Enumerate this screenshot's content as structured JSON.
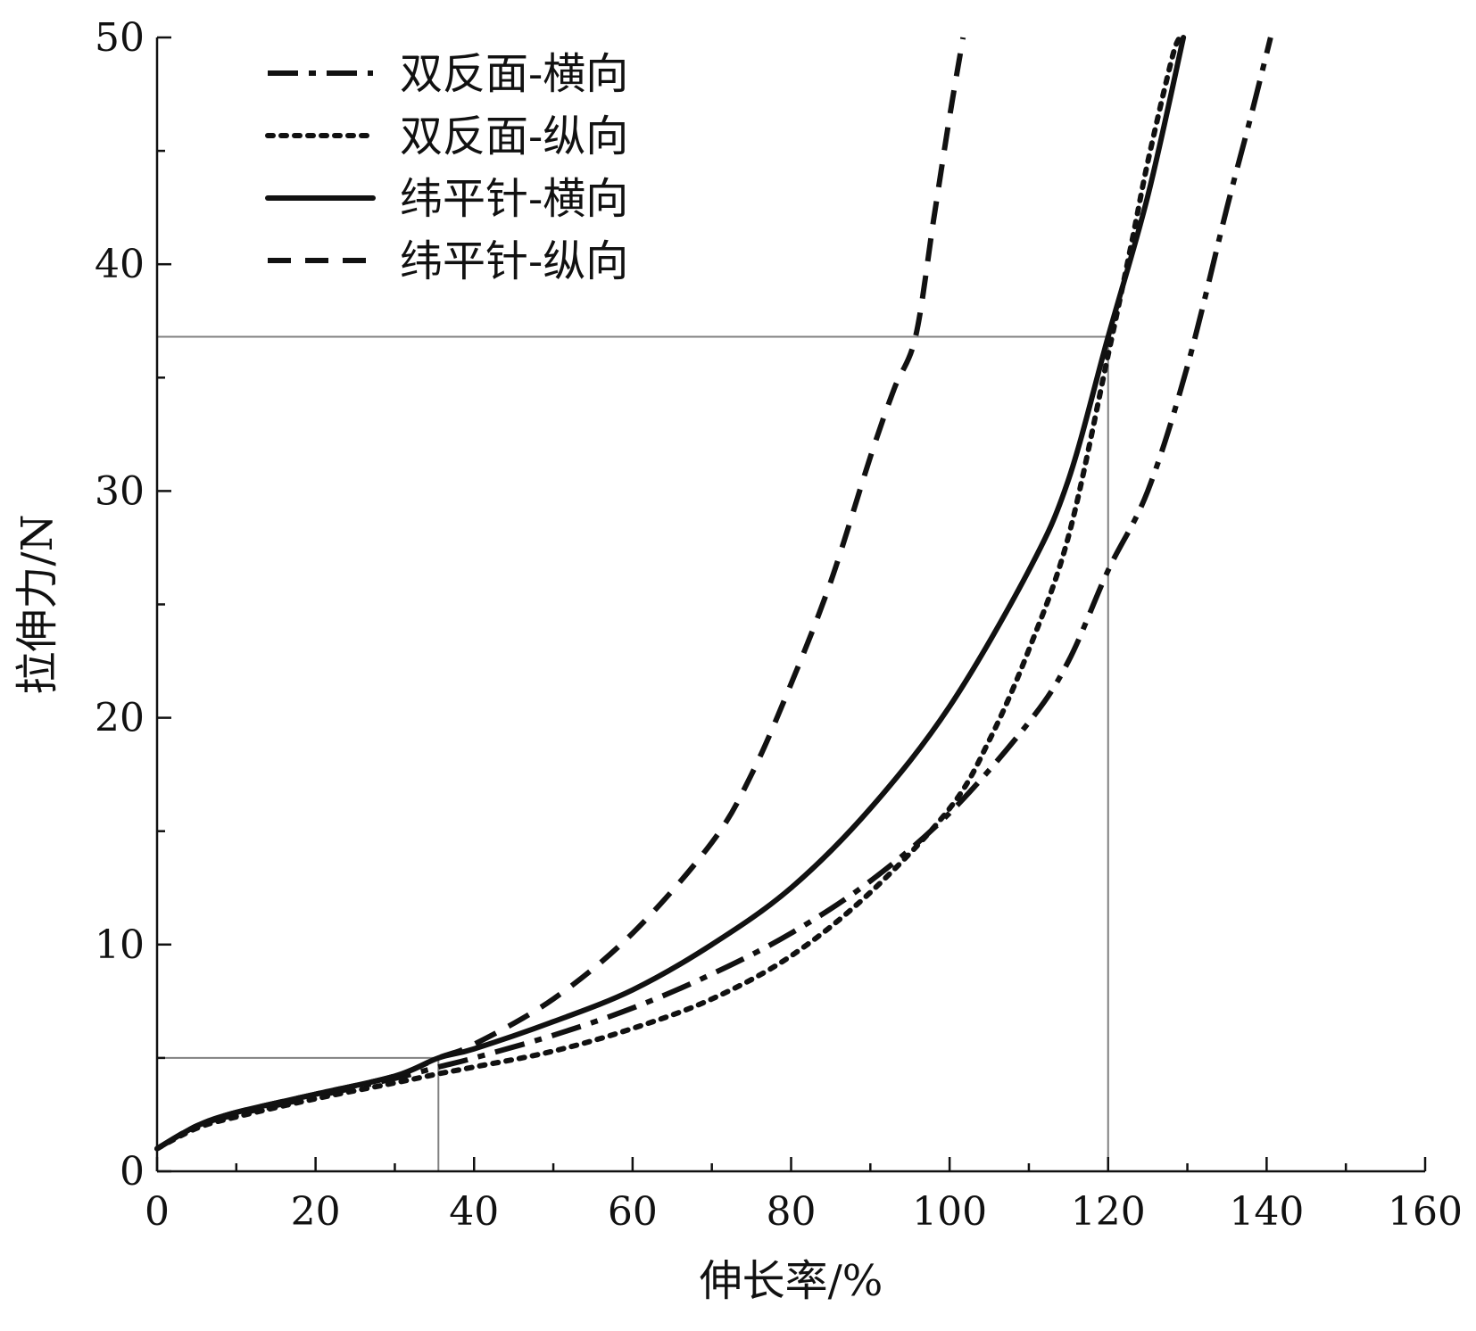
{
  "chart_data": {
    "type": "line",
    "xlabel": "伸长率/%",
    "ylabel": "拉伸力/N",
    "xlim": [
      0,
      160
    ],
    "ylim": [
      0,
      50
    ],
    "xticks": [
      "0",
      "20",
      "40",
      "60",
      "80",
      "100",
      "120",
      "140",
      "160"
    ],
    "yticks": [
      "0",
      "10",
      "20",
      "30",
      "40",
      "50"
    ],
    "grid": false,
    "legend_position": "top-left",
    "series": [
      {
        "name": "双反面-横向",
        "line_style": "dash-dot",
        "color": "#111111",
        "x": [
          0,
          5,
          10,
          20,
          30,
          35.5,
          40,
          50,
          60,
          70,
          80,
          90,
          100,
          110,
          115,
          120,
          125,
          130,
          135,
          138,
          140.5
        ],
        "y": [
          1.0,
          2.0,
          2.5,
          3.3,
          4.1,
          4.6,
          5.0,
          6.0,
          7.2,
          8.7,
          10.5,
          12.8,
          15.8,
          19.8,
          22.5,
          26.5,
          30.0,
          35.5,
          42.5,
          46.5,
          50.0
        ]
      },
      {
        "name": "双反面-纵向",
        "line_style": "dotted",
        "color": "#111111",
        "x": [
          0,
          5,
          10,
          20,
          30,
          35.5,
          40,
          50,
          60,
          70,
          80,
          90,
          100,
          105,
          110,
          115,
          120,
          123,
          125,
          128,
          129
        ],
        "y": [
          1.0,
          1.9,
          2.4,
          3.2,
          3.9,
          4.3,
          4.6,
          5.3,
          6.3,
          7.6,
          9.5,
          12.3,
          16.0,
          19.0,
          23.0,
          28.0,
          36.0,
          41.0,
          44.5,
          49.0,
          50.0
        ]
      },
      {
        "name": "纬平针-横向",
        "line_style": "solid",
        "color": "#111111",
        "x": [
          0,
          5,
          10,
          20,
          30,
          35.5,
          40,
          50,
          60,
          70,
          80,
          90,
          100,
          110,
          115,
          120,
          125,
          129.5
        ],
        "y": [
          1.0,
          2.0,
          2.6,
          3.4,
          4.2,
          5.0,
          5.4,
          6.6,
          8.0,
          10.0,
          12.5,
          16.0,
          20.5,
          26.5,
          30.5,
          36.8,
          43.0,
          50.0
        ]
      },
      {
        "name": "纬平针-纵向",
        "line_style": "dashed",
        "color": "#111111",
        "x": [
          0,
          5,
          10,
          20,
          30,
          35.5,
          40,
          50,
          60,
          70,
          75,
          80,
          85,
          90,
          93,
          95.7,
          98,
          100,
          101.7
        ],
        "y": [
          1.0,
          2.0,
          2.6,
          3.4,
          4.2,
          5.0,
          5.6,
          7.6,
          10.5,
          14.5,
          17.5,
          21.5,
          26.0,
          31.5,
          34.5,
          36.8,
          42.0,
          46.5,
          50.0
        ]
      }
    ],
    "reference_lines": [
      {
        "type": "horizontal",
        "y": 5.0,
        "x_from": 0,
        "x_to": 35.5,
        "color": "#808080"
      },
      {
        "type": "vertical",
        "x": 35.5,
        "y_from": 0,
        "y_to": 5.0,
        "color": "#808080"
      },
      {
        "type": "horizontal",
        "y": 36.8,
        "x_from": 0,
        "x_to": 120,
        "color": "#808080"
      },
      {
        "type": "vertical",
        "x": 120,
        "y_from": 0,
        "y_to": 36.8,
        "color": "#808080"
      }
    ]
  }
}
